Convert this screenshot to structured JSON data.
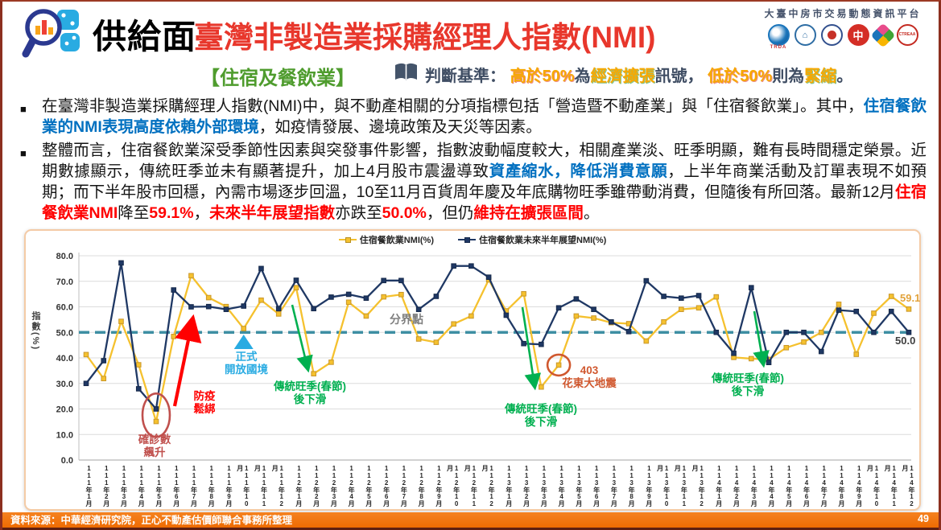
{
  "header": {
    "section_label": "供給面",
    "title": "臺灣非製造業採購經理人指數(NMI)",
    "subtitle": "【住宿及餐飲業】",
    "platform_name": "大臺中房市交易動態資訊平台",
    "logos": [
      {
        "label": "TRDA"
      },
      {
        "label": ""
      },
      {
        "label": ""
      },
      {
        "label": "中"
      },
      {
        "label": ""
      },
      {
        "label": "CTREAA"
      }
    ]
  },
  "criteria": {
    "segments": [
      {
        "t": "判斷基準： ",
        "s": "plain"
      },
      {
        "t": "高於50%",
        "s": "num"
      },
      {
        "t": "為",
        "s": "plain"
      },
      {
        "t": "經濟擴張",
        "s": "term"
      },
      {
        "t": "訊號， ",
        "s": "plain"
      },
      {
        "t": "低於50%",
        "s": "num"
      },
      {
        "t": "則為",
        "s": "plain"
      },
      {
        "t": "緊縮",
        "s": "term"
      },
      {
        "t": "。",
        "s": "plain"
      }
    ]
  },
  "bullets": [
    {
      "segments": [
        {
          "t": "在臺灣非製造業採購經理人指數(NMI)中，與不動產相關的分項指標包括「營造暨不動產業」與「住宿餐飲業」。其中，",
          "s": ""
        },
        {
          "t": "住宿餐飲業的NMI表現高度依賴外部環境",
          "s": "blue"
        },
        {
          "t": "，如疫情發展、邊境政策及天災等因素。",
          "s": ""
        }
      ]
    },
    {
      "segments": [
        {
          "t": "整體而言，住宿餐飲業深受季節性因素與突發事件影響，指數波動幅度較大，相關產業淡、旺季明顯，難有長時間穩定榮景。近期數據顯示，傳統旺季並未有顯著提升，加上4月股市震盪導致",
          "s": ""
        },
        {
          "t": "資產縮水，降低消費意願",
          "s": "blue"
        },
        {
          "t": "，上半年商業活動及訂單表現不如預期；而下半年股市回穩，內需市場逐步回溫，10至11月百貨周年慶及年底購物旺季雖帶動消費，但隨後有所回落。最新12月",
          "s": ""
        },
        {
          "t": "住宿餐飲業NMI",
          "s": "red"
        },
        {
          "t": "降至",
          "s": ""
        },
        {
          "t": "59.1%",
          "s": "red"
        },
        {
          "t": "，",
          "s": ""
        },
        {
          "t": "未來半年展望指數",
          "s": "red"
        },
        {
          "t": "亦跌至",
          "s": ""
        },
        {
          "t": "50.0%",
          "s": "red"
        },
        {
          "t": "，但仍",
          "s": ""
        },
        {
          "t": "維持在擴張區間",
          "s": "red"
        },
        {
          "t": "。",
          "s": ""
        }
      ]
    }
  ],
  "chart_data": {
    "type": "line",
    "ylabel": "指數(%)",
    "ylim": [
      0,
      80
    ],
    "ytick_step": 10,
    "grid": "horizontal",
    "legend_position": "top",
    "divider_value": 50,
    "divider_label": "分界點",
    "divider_color": "#3e8fa3",
    "categories": [
      "111年1月",
      "111年2月",
      "111年3月",
      "111年4月",
      "111年5月",
      "111年6月",
      "111年7月",
      "111年8月",
      "111年9月",
      "111年10月",
      "111年11月",
      "111年12月",
      "112年1月",
      "112年2月",
      "112年3月",
      "112年4月",
      "112年5月",
      "112年6月",
      "112年7月",
      "112年8月",
      "112年9月",
      "112年10月",
      "112年11月",
      "112年12月",
      "113年1月",
      "113年2月",
      "113年3月",
      "113年4月",
      "113年5月",
      "113年6月",
      "113年7月",
      "113年8月",
      "113年9月",
      "113年10月",
      "113年11月",
      "113年12月",
      "114年1月",
      "114年2月",
      "114年3月",
      "114年4月",
      "114年5月",
      "114年6月",
      "114年7月",
      "114年8月",
      "114年9月",
      "114年10月",
      "114年11月",
      "114年12月"
    ],
    "series": [
      {
        "name": "住宿餐飲業NMI(%)",
        "color": "#f5c12e",
        "end_label": "59.1",
        "end_label_color": "#e2a33c",
        "values": [
          41.3,
          31.9,
          54.3,
          37.3,
          15.1,
          48.4,
          72.2,
          63.6,
          60.1,
          51.5,
          62.6,
          57.2,
          67.5,
          33.8,
          38.3,
          61.8,
          56.4,
          63.9,
          64.8,
          47.4,
          46.1,
          53.3,
          56.4,
          70.6,
          58.4,
          65.1,
          28.6,
          37.2,
          56.4,
          55.6,
          53.8,
          53.4,
          46.6,
          54.1,
          59.0,
          59.6,
          63.9,
          40.2,
          39.7,
          39.4,
          44.0,
          46.2,
          50.0,
          61.0,
          41.4,
          57.5,
          64.1,
          59.1
        ]
      },
      {
        "name": "住宿餐飲業未來半年展望NMI(%)",
        "color": "#1f3864",
        "end_label": "50.0",
        "end_label_color": "#404040",
        "values": [
          30.0,
          38.9,
          77.2,
          27.9,
          20.0,
          66.6,
          60.0,
          60.1,
          59.0,
          60.3,
          75.0,
          59.3,
          70.4,
          59.3,
          63.8,
          64.9,
          63.4,
          70.3,
          70.3,
          59.0,
          64.1,
          76.0,
          76.0,
          71.6,
          56.7,
          45.6,
          45.3,
          59.6,
          63.1,
          59.0,
          54.1,
          50.3,
          70.2,
          64.1,
          63.4,
          64.4,
          50.0,
          41.8,
          67.5,
          38.2,
          50.0,
          50.0,
          42.5,
          58.7,
          58.2,
          50.0,
          58.2,
          50.0
        ]
      }
    ],
    "annotations": [
      {
        "id": "confirmed-cases-spike",
        "type": "circle",
        "text": "確診數\n飆升",
        "color": "#c0504d",
        "month_index": 4
      },
      {
        "id": "covid-easing",
        "type": "arrow-up",
        "text": "防疫\n鬆綁",
        "color": "#ff0000",
        "month_index": 6
      },
      {
        "id": "border-reopen",
        "type": "triangle",
        "text": "正式\n開放國境",
        "color": "#29abe2",
        "month_index": 9
      },
      {
        "id": "post-cny-decline-1",
        "type": "arrow-down",
        "text": "傳統旺季(春節)\n後下滑",
        "color": "#00b050",
        "month_index": 13
      },
      {
        "id": "post-cny-decline-2",
        "type": "arrow-down",
        "text": "傳統旺季(春節)\n後下滑",
        "color": "#00b050",
        "month_index": 26
      },
      {
        "id": "hualien-earthquake",
        "type": "circle",
        "text": "403\n花東大地震",
        "color": "#d0582f",
        "month_index": 27
      },
      {
        "id": "post-cny-decline-3",
        "type": "arrow-down",
        "text": "傳統旺季(春節)\n後下滑",
        "color": "#00b050",
        "month_index": 38
      }
    ]
  },
  "footer": {
    "source": "資料來源：中華經濟研究院，正心不動產估價師聯合事務所整理",
    "page": "49"
  }
}
